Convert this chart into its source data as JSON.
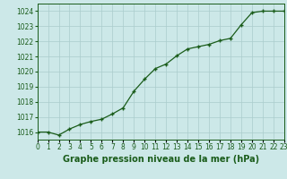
{
  "x": [
    0,
    1,
    2,
    3,
    4,
    5,
    6,
    7,
    8,
    9,
    10,
    11,
    12,
    13,
    14,
    15,
    16,
    17,
    18,
    19,
    20,
    21,
    22,
    23
  ],
  "y": [
    1016.0,
    1016.0,
    1015.8,
    1016.2,
    1016.5,
    1016.7,
    1016.85,
    1017.2,
    1017.6,
    1018.7,
    1019.5,
    1020.2,
    1020.5,
    1021.05,
    1021.5,
    1021.65,
    1021.8,
    1022.05,
    1022.2,
    1023.1,
    1023.9,
    1024.0,
    1024.0,
    1024.0
  ],
  "line_color": "#1a5c1a",
  "marker": "+",
  "marker_color": "#1a5c1a",
  "marker_size": 3.5,
  "linewidth": 0.9,
  "title": "Graphe pression niveau de la mer (hPa)",
  "title_color": "#1a5c1a",
  "xlim": [
    0,
    23
  ],
  "ylim": [
    1015.5,
    1024.5
  ],
  "yticks": [
    1016,
    1017,
    1018,
    1019,
    1020,
    1021,
    1022,
    1023,
    1024
  ],
  "xticks": [
    0,
    1,
    2,
    3,
    4,
    5,
    6,
    7,
    8,
    9,
    10,
    11,
    12,
    13,
    14,
    15,
    16,
    17,
    18,
    19,
    20,
    21,
    22,
    23
  ],
  "xtick_labels": [
    "0",
    "1",
    "2",
    "3",
    "4",
    "5",
    "6",
    "7",
    "8",
    "9",
    "10",
    "11",
    "12",
    "13",
    "14",
    "15",
    "16",
    "17",
    "18",
    "19",
    "20",
    "21",
    "22",
    "23"
  ],
  "background_color": "#cce8e8",
  "grid_color": "#aacccc",
  "tick_color": "#1a5c1a",
  "tick_fontsize": 5.5,
  "title_fontsize": 7.0,
  "title_fontweight": "bold"
}
